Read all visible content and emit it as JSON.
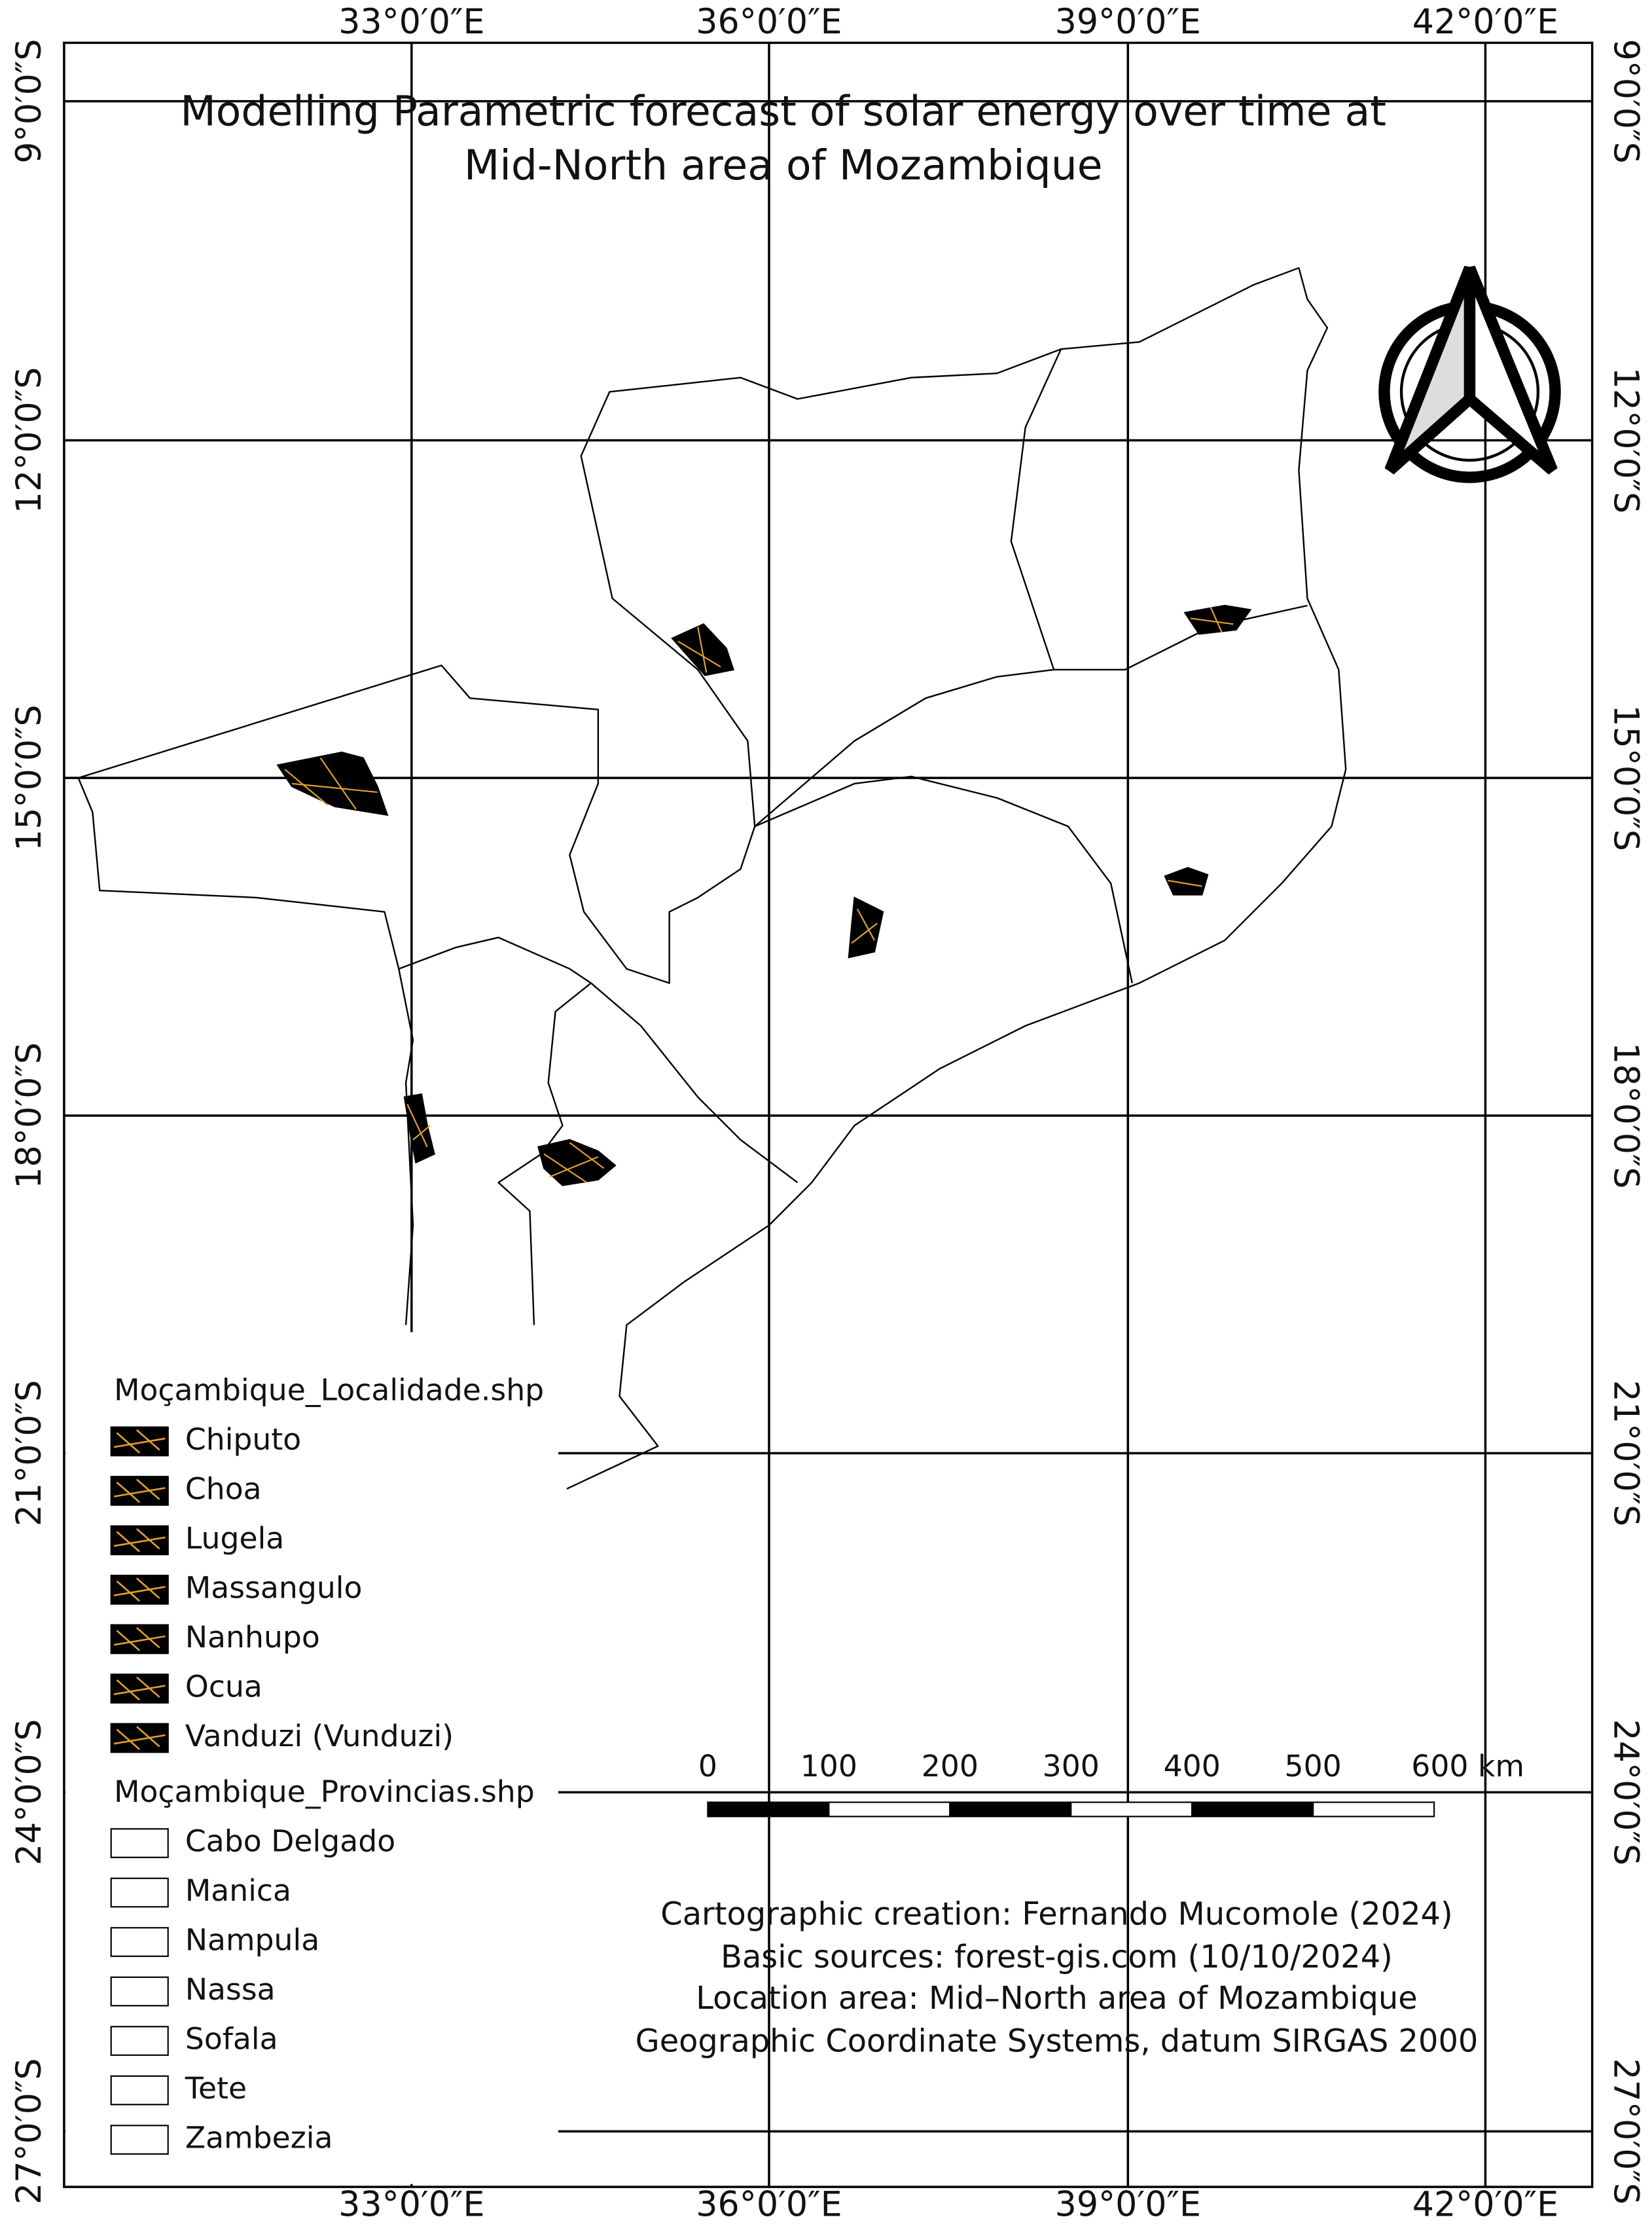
{
  "title": [
    "Modelling Parametric forecast of solar energy over time at",
    "Mid-North area of Mozambique"
  ],
  "graticule": {
    "longitudes": [
      "33°0′0″E",
      "36°0′0″E",
      "39°0′0″E",
      "42°0′0″E"
    ],
    "latitudes": [
      "9°0′0″S",
      "12°0′0″S",
      "15°0′0″S",
      "18°0′0″S",
      "21°0′0″S",
      "24°0′0″S",
      "27°0′0″S"
    ]
  },
  "legend": {
    "groups": [
      {
        "title": "Moçambique_Localidade.shp",
        "items": [
          "Chiputo",
          "Choa",
          "Lugela",
          "Massangulo",
          "Nanhupo",
          "Ocua",
          "Vanduzi (Vunduzi)"
        ]
      },
      {
        "title": "Moçambique_Provincias.shp",
        "items": [
          "Cabo Delgado",
          "Manica",
          "Nampula",
          "Nassa",
          "Sofala",
          "Tete",
          "Zambezia"
        ]
      }
    ]
  },
  "scale_bar": {
    "labels": [
      "0",
      "100",
      "200",
      "300",
      "400",
      "500",
      "600 km"
    ]
  },
  "credits": [
    "Cartographic creation: Fernando Mucomole (2024)",
    "Basic sources: forest-gis.com (10/10/2024)",
    "Location area: Mid–North area of Mozambique",
    "Geographic Coordinate Systems, datum SIRGAS 2000"
  ]
}
